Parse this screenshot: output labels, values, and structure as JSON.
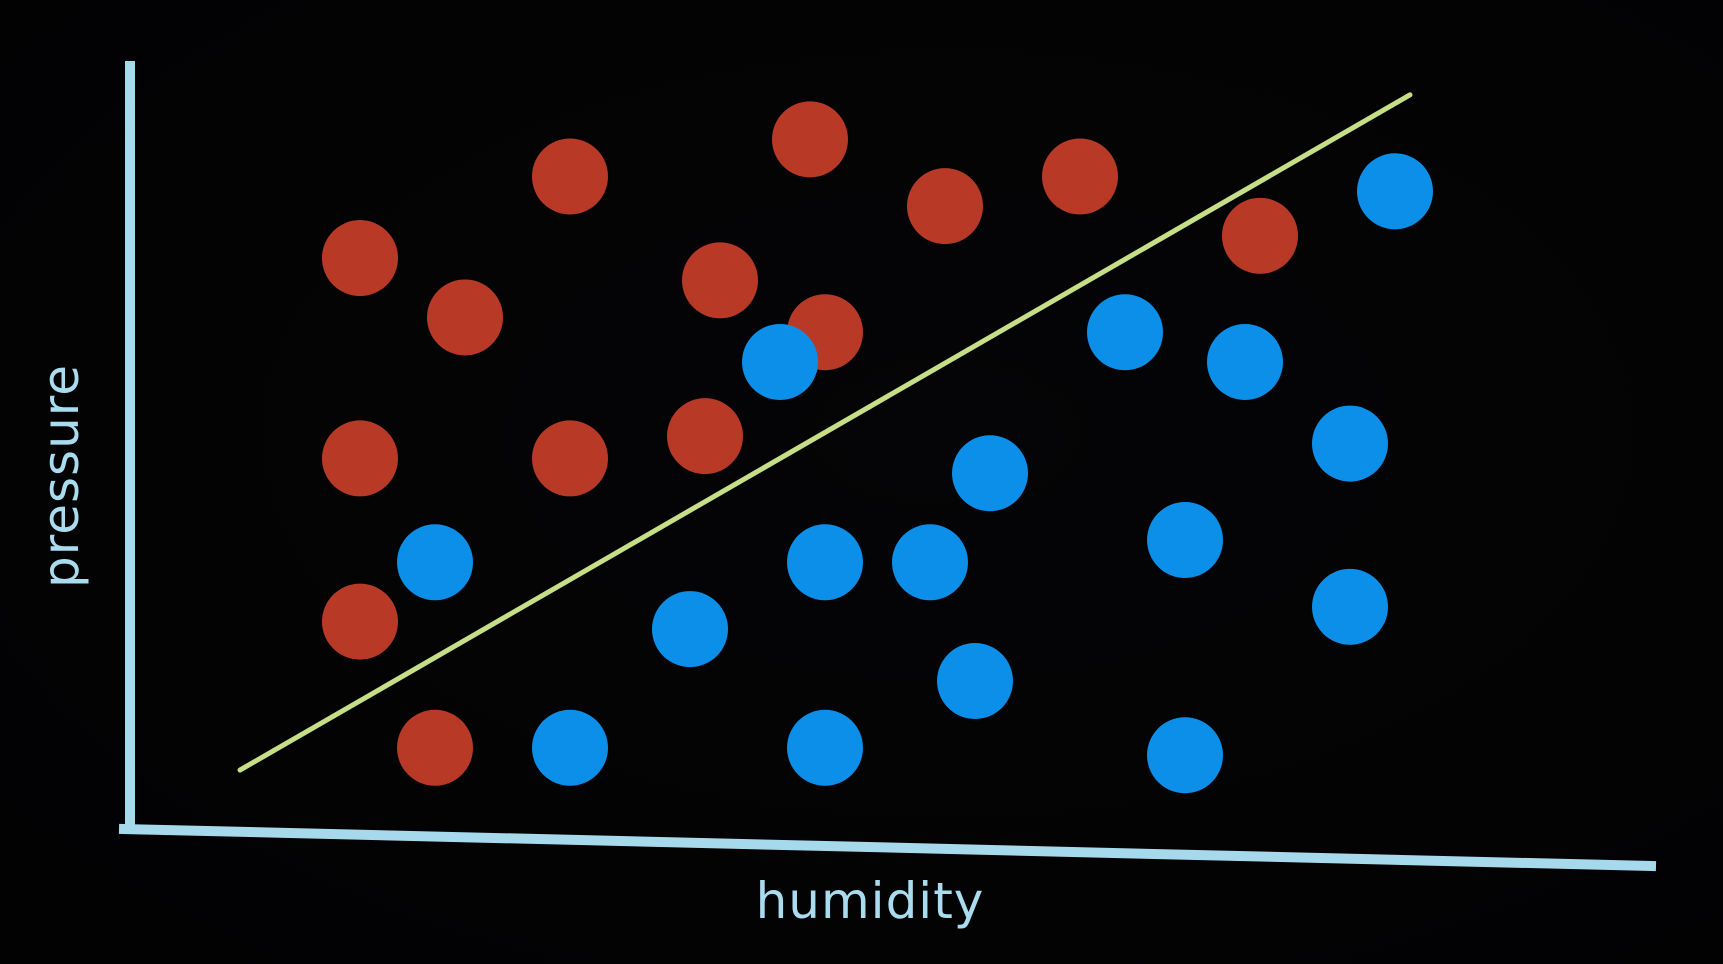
{
  "chart_data": {
    "type": "scatter",
    "title": "",
    "xlabel": "humidity",
    "ylabel": "pressure",
    "xlim": [
      0,
      10
    ],
    "ylim": [
      0,
      10
    ],
    "grid": false,
    "legend": "none",
    "series": [
      {
        "color": "#b83a26",
        "points": [
          [
            1.5,
            2.7
          ],
          [
            2.0,
            1.0
          ],
          [
            1.5,
            7.6
          ],
          [
            2.2,
            6.8
          ],
          [
            1.5,
            4.9
          ],
          [
            2.9,
            8.7
          ],
          [
            2.9,
            4.9
          ],
          [
            3.8,
            5.2
          ],
          [
            3.9,
            7.3
          ],
          [
            4.6,
            6.6
          ],
          [
            4.5,
            9.2
          ],
          [
            5.4,
            8.3
          ],
          [
            6.3,
            8.7
          ],
          [
            7.5,
            7.9
          ]
        ]
      },
      {
        "color": "#0b8fe8",
        "points": [
          [
            2.0,
            3.5
          ],
          [
            2.9,
            1.0
          ],
          [
            3.7,
            2.6
          ],
          [
            4.3,
            6.2
          ],
          [
            4.6,
            3.5
          ],
          [
            4.6,
            1.0
          ],
          [
            5.3,
            3.5
          ],
          [
            5.7,
            4.7
          ],
          [
            5.6,
            1.9
          ],
          [
            6.6,
            6.6
          ],
          [
            7.0,
            3.8
          ],
          [
            7.0,
            0.9
          ],
          [
            7.4,
            6.2
          ],
          [
            8.1,
            5.1
          ],
          [
            8.1,
            2.9
          ],
          [
            8.4,
            8.5
          ]
        ]
      }
    ],
    "decision_line": {
      "color": "#c6df86",
      "from": [
        0.7,
        0.7
      ],
      "to": [
        8.5,
        9.8
      ]
    }
  }
}
